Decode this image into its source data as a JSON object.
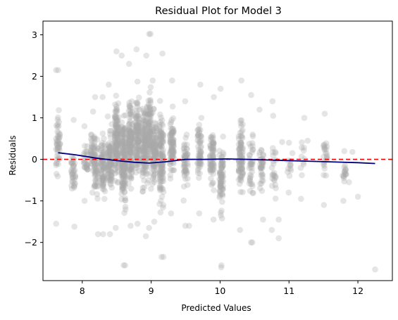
{
  "chart_data": {
    "type": "scatter",
    "title": "Residual Plot for Model 3",
    "xlabel": "Predicted Values",
    "ylabel": "Residuals",
    "xlim": [
      7.43,
      12.5
    ],
    "ylim": [
      -2.92,
      3.33
    ],
    "x_ticks": [
      8,
      9,
      10,
      11,
      12
    ],
    "y_ticks": [
      -2,
      -1,
      0,
      1,
      2,
      3
    ],
    "grid": false,
    "legend": "none",
    "colors": {
      "points": "#a9a9a9",
      "trend": "#000080",
      "zero_line": "#ff0000"
    },
    "points": {
      "count_estimate": 2000,
      "alpha": 0.3,
      "columns": [
        {
          "x": 7.65,
          "ymin": -1.55,
          "ymax": 2.15,
          "n": 50
        },
        {
          "x": 7.87,
          "ymin": -1.62,
          "ymax": 0.95,
          "n": 40
        },
        {
          "x": 8.05,
          "ymin": -1.0,
          "ymax": 0.8,
          "n": 30
        },
        {
          "x": 8.15,
          "ymin": -0.8,
          "ymax": 1.15,
          "n": 40
        },
        {
          "x": 8.2,
          "ymin": -1.8,
          "ymax": 1.5,
          "n": 60
        },
        {
          "x": 8.3,
          "ymin": -1.8,
          "ymax": 1.5,
          "n": 80
        },
        {
          "x": 8.4,
          "ymin": -1.8,
          "ymax": 1.8,
          "n": 100
        },
        {
          "x": 8.5,
          "ymin": -1.65,
          "ymax": 2.6,
          "n": 150
        },
        {
          "x": 8.6,
          "ymin": -2.55,
          "ymax": 2.5,
          "n": 170
        },
        {
          "x": 8.7,
          "ymin": -1.6,
          "ymax": 2.3,
          "n": 150
        },
        {
          "x": 8.8,
          "ymin": -1.55,
          "ymax": 2.65,
          "n": 130
        },
        {
          "x": 8.9,
          "ymin": -1.85,
          "ymax": 2.5,
          "n": 120
        },
        {
          "x": 8.97,
          "ymin": -1.65,
          "ymax": 3.02,
          "n": 100
        },
        {
          "x": 9.05,
          "ymin": -1.5,
          "ymax": 1.9,
          "n": 110
        },
        {
          "x": 9.15,
          "ymin": -2.35,
          "ymax": 2.55,
          "n": 130
        },
        {
          "x": 9.3,
          "ymin": -1.3,
          "ymax": 1.9,
          "n": 90
        },
        {
          "x": 9.5,
          "ymin": -1.6,
          "ymax": 1.4,
          "n": 60
        },
        {
          "x": 9.7,
          "ymin": -1.3,
          "ymax": 1.8,
          "n": 60
        },
        {
          "x": 9.88,
          "ymin": -1.45,
          "ymax": 1.5,
          "n": 70
        },
        {
          "x": 10.02,
          "ymin": -2.6,
          "ymax": 1.7,
          "n": 80
        },
        {
          "x": 10.3,
          "ymin": -1.7,
          "ymax": 1.9,
          "n": 90
        },
        {
          "x": 10.45,
          "ymin": -2.0,
          "ymax": 1.55,
          "n": 40
        },
        {
          "x": 10.6,
          "ymin": -1.45,
          "ymax": 1.2,
          "n": 40
        },
        {
          "x": 10.78,
          "ymin": -1.7,
          "ymax": 1.4,
          "n": 25
        },
        {
          "x": 11.0,
          "ymin": -0.8,
          "ymax": 0.4,
          "n": 12
        },
        {
          "x": 11.2,
          "ymin": -0.95,
          "ymax": 1.0,
          "n": 12
        },
        {
          "x": 11.53,
          "ymin": -1.1,
          "ymax": 1.1,
          "n": 25
        },
        {
          "x": 11.8,
          "ymin": -1.0,
          "ymax": 0.2,
          "n": 18
        }
      ],
      "outliers": [
        {
          "x": 12.25,
          "y": -2.65
        },
        {
          "x": 12.0,
          "y": -0.9
        },
        {
          "x": 11.87,
          "y": -0.55
        },
        {
          "x": 11.92,
          "y": 0.18
        },
        {
          "x": 11.27,
          "y": 0.45
        },
        {
          "x": 11.05,
          "y": 0.15
        },
        {
          "x": 10.9,
          "y": 0.42
        },
        {
          "x": 10.77,
          "y": 1.05
        },
        {
          "x": 10.85,
          "y": -1.9
        },
        {
          "x": 8.97,
          "y": 3.02
        },
        {
          "x": 8.6,
          "y": -2.55
        },
        {
          "x": 10.02,
          "y": -2.55
        },
        {
          "x": 9.15,
          "y": -2.35
        },
        {
          "x": 7.65,
          "y": 2.15
        },
        {
          "x": 10.45,
          "y": -2.0
        },
        {
          "x": 9.55,
          "y": -1.6
        },
        {
          "x": 10.85,
          "y": -1.45
        }
      ]
    },
    "trend": {
      "x": [
        7.65,
        7.9,
        8.2,
        8.5,
        8.75,
        8.97,
        9.2,
        9.5,
        9.8,
        10.1,
        10.4,
        10.8,
        11.2,
        11.6,
        12.0,
        12.25
      ],
      "y": [
        0.16,
        0.11,
        0.03,
        -0.03,
        -0.07,
        -0.09,
        -0.06,
        0.0,
        0.0,
        0.01,
        0.0,
        -0.02,
        -0.04,
        -0.06,
        -0.08,
        -0.1
      ]
    },
    "zero_line": {
      "y": 0,
      "style": "dashed"
    }
  }
}
